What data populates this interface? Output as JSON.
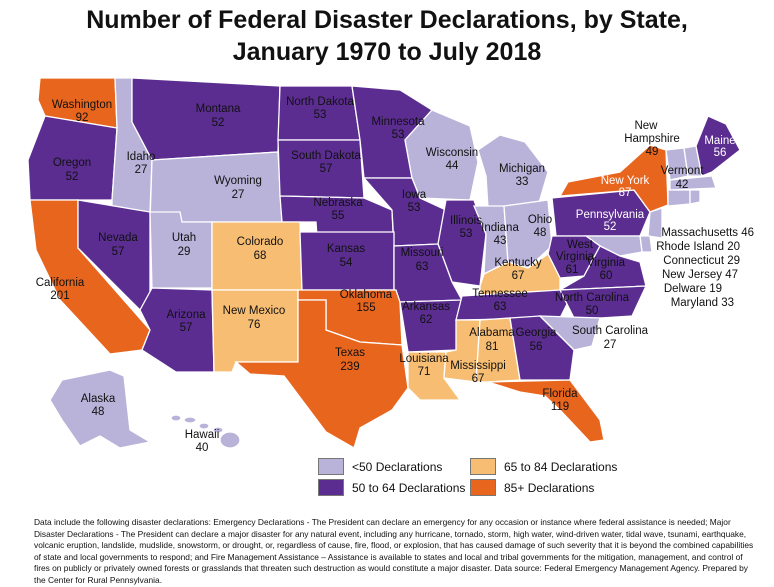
{
  "title_line1": "Number of Federal Disaster Declarations, by State,",
  "title_line2": "January 1970 to July 2018",
  "colors": {
    "low": "#b9b3d9",
    "mid": "#5b2d91",
    "high_mid": "#f7be73",
    "high": "#e8651e"
  },
  "legend": [
    {
      "label": "<50 Declarations",
      "color": "#b9b3d9"
    },
    {
      "label": "65 to 84 Declarations",
      "color": "#f7be73"
    },
    {
      "label": "50 to 64 Declarations",
      "color": "#5b2d91"
    },
    {
      "label": "85+ Declarations",
      "color": "#e8651e"
    }
  ],
  "states": {
    "washington": {
      "name": "Washington",
      "value": "92"
    },
    "oregon": {
      "name": "Oregon",
      "value": "52"
    },
    "idaho": {
      "name": "Idaho",
      "value": "27"
    },
    "montana": {
      "name": "Montana",
      "value": "52"
    },
    "wyoming": {
      "name": "Wyoming",
      "value": "27"
    },
    "north_dakota": {
      "name": "North Dakota",
      "value": "53"
    },
    "south_dakota": {
      "name": "South Dakota",
      "value": "57"
    },
    "minnesota": {
      "name": "Minnesota",
      "value": "53"
    },
    "wisconsin": {
      "name": "Wisconsin",
      "value": "44"
    },
    "michigan": {
      "name": "Michigan",
      "value": "33"
    },
    "nebraska": {
      "name": "Nebraska",
      "value": "55"
    },
    "iowa": {
      "name": "Iowa",
      "value": "53"
    },
    "illinois": {
      "name": "Illinois",
      "value": "53"
    },
    "indiana": {
      "name": "Indiana",
      "value": "43"
    },
    "ohio": {
      "name": "Ohio",
      "value": "48"
    },
    "pennsylvania": {
      "name": "Pennsylvania",
      "value": "52"
    },
    "new_york": {
      "name": "New York",
      "value": "87"
    },
    "vermont": {
      "name": "Vermont",
      "value": "42"
    },
    "new_hampshire": {
      "name": "New Hampshire",
      "value": "49"
    },
    "maine": {
      "name": "Maine",
      "value": "56"
    },
    "california": {
      "name": "California",
      "value": "201"
    },
    "nevada": {
      "name": "Nevada",
      "value": "57"
    },
    "utah": {
      "name": "Utah",
      "value": "29"
    },
    "colorado": {
      "name": "Colorado",
      "value": "68"
    },
    "kansas": {
      "name": "Kansas",
      "value": "54"
    },
    "missouri": {
      "name": "Missouri",
      "value": "63"
    },
    "kentucky": {
      "name": "Kentucky",
      "value": "67"
    },
    "west_virginia": {
      "name": "West Virginia",
      "value": "61"
    },
    "virginia": {
      "name": "Virginia",
      "value": "60"
    },
    "arizona": {
      "name": "Arizona",
      "value": "57"
    },
    "new_mexico": {
      "name": "New Mexico",
      "value": "76"
    },
    "oklahoma": {
      "name": "Oklahoma",
      "value": "155"
    },
    "arkansas": {
      "name": "Arkansas",
      "value": "62"
    },
    "tennessee": {
      "name": "Tennessee",
      "value": "63"
    },
    "north_carolina": {
      "name": "North Carolina",
      "value": "50"
    },
    "south_carolina": {
      "name": "South Carolina",
      "value": "27"
    },
    "texas": {
      "name": "Texas",
      "value": "239"
    },
    "louisiana": {
      "name": "Louisiana",
      "value": "71"
    },
    "mississippi": {
      "name": "Mississippi",
      "value": "67"
    },
    "alabama": {
      "name": "Alabama",
      "value": "81"
    },
    "georgia": {
      "name": "Georgia",
      "value": "56"
    },
    "florida": {
      "name": "Florida",
      "value": "119"
    },
    "alaska": {
      "name": "Alaska",
      "value": "48"
    },
    "hawaii": {
      "name": "Hawaii",
      "value": "40"
    }
  },
  "northeast_list": [
    "Massachusetts  46",
    "Rhode Island 20",
    "Connecticut  29",
    "New Jersey 47",
    "Delware 19",
    "Maryland 33"
  ],
  "footnote": "Data include the following disaster declarations:  Emergency Declarations - The President can declare an emergency for any occasion or instance where federal assistance is needed; Major Disaster Declarations - The President can declare a major disaster for any natural event, including any hurricane, tornado, storm, high water, wind-driven water, tidal wave, tsunami, earthquake, volcanic eruption, landslide, mudslide, snowstorm, or drought, or, regardless of cause, fire, flood, or explosion, that has caused damage of such severity that it is beyond the combined capabilities of state and local governments to respond; and Fire Management Assistance – Assistance is available to states and local and tribal governments for the mitigation, management, and control of fires on publicly or privately owned forests or grasslands that threaten such destruction as would constitute a major disaster. Data source: Federal Emergency Management Agency. Prepared by the Center for Rural Pennsylvania."
}
